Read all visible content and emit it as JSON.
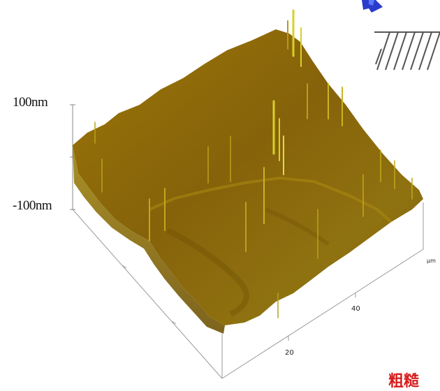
{
  "figure": {
    "z_max_label": "100nm",
    "z_min_label": "-100nm",
    "x_tick_20": "20",
    "x_tick_40": "40",
    "axis_unit": "μm",
    "corner_text": "粗糙"
  },
  "colors": {
    "surface_base": "#8a6a06",
    "surface_dark": "#6d4f04",
    "surface_light": "#b99a17",
    "peak_highlight": "#d7d12a",
    "marker_blue": "#2a3ccc",
    "hatch": "#555555"
  }
}
